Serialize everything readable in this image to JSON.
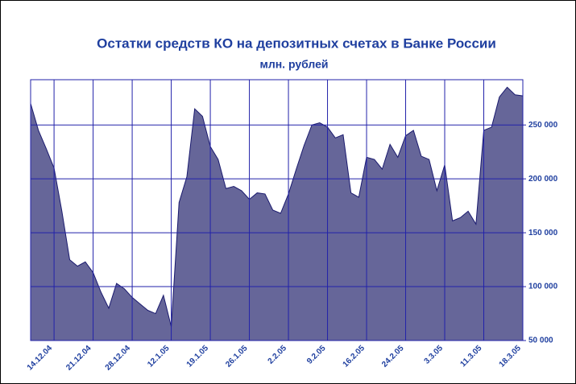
{
  "chart_data": {
    "type": "area",
    "title": "Остатки средств КО на депозитных счетах в Банке России",
    "subtitle": "млн. рублей",
    "categories": [
      null,
      null,
      null,
      "14.12.04",
      null,
      null,
      null,
      null,
      "21.12.04",
      null,
      null,
      null,
      null,
      "28.12.04",
      null,
      null,
      null,
      null,
      "12.1.05",
      null,
      null,
      null,
      null,
      "19.1.05",
      null,
      null,
      null,
      null,
      "26.1.05",
      null,
      null,
      null,
      null,
      "2.2.05",
      null,
      null,
      null,
      null,
      "9.2.05",
      null,
      null,
      null,
      null,
      "16.2.05",
      null,
      null,
      null,
      null,
      "24.2.05",
      null,
      null,
      null,
      null,
      "3.3.05",
      null,
      null,
      null,
      null,
      "11.3.05",
      null,
      null,
      null,
      null,
      "18.3.05"
    ],
    "values": [
      270000,
      245000,
      228000,
      210000,
      170000,
      125000,
      119000,
      123000,
      113000,
      95000,
      80000,
      103000,
      98000,
      90000,
      84000,
      78000,
      75000,
      92000,
      63000,
      178000,
      202000,
      265000,
      258000,
      230000,
      218000,
      191000,
      193000,
      189000,
      181000,
      187000,
      186000,
      171000,
      168000,
      186000,
      209000,
      231000,
      250000,
      252000,
      248000,
      238000,
      241000,
      187000,
      183000,
      220000,
      218000,
      209000,
      232000,
      220000,
      240000,
      245000,
      221000,
      218000,
      189000,
      213000,
      161000,
      164000,
      170000,
      158000,
      245000,
      248000,
      276000,
      285000,
      278000,
      277000
    ],
    "color": "#666699",
    "ylim": [
      50000,
      292000
    ],
    "yticks": [
      {
        "value": 50000,
        "label": "50 000"
      },
      {
        "value": 100000,
        "label": "100 000"
      },
      {
        "value": 150000,
        "label": "150 000"
      },
      {
        "value": 200000,
        "label": "200 000"
      },
      {
        "value": 250000,
        "label": "250 000"
      }
    ],
    "grid": true
  }
}
